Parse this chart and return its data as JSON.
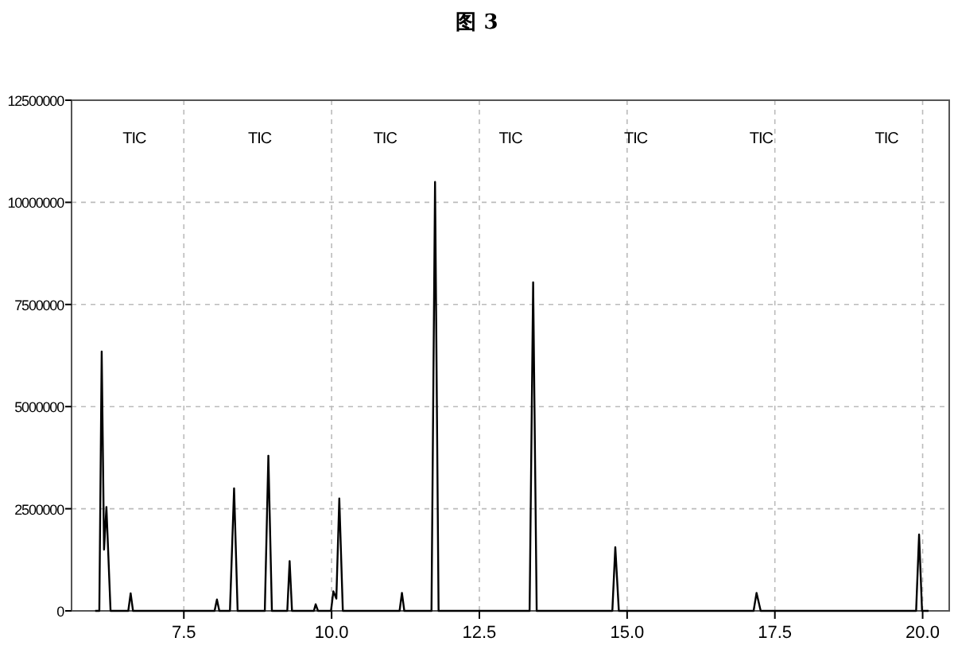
{
  "chart_data": {
    "type": "line",
    "title": "图 3",
    "x": [
      6.0,
      6.07,
      6.11,
      6.15,
      6.19,
      6.26,
      6.56,
      6.6,
      6.64,
      8.02,
      8.06,
      8.1,
      8.28,
      8.35,
      8.41,
      8.87,
      8.93,
      8.99,
      9.25,
      9.29,
      9.33,
      9.7,
      9.73,
      9.77,
      9.99,
      10.03,
      10.08,
      10.13,
      10.19,
      11.15,
      11.19,
      11.23,
      11.69,
      11.75,
      11.81,
      13.35,
      13.41,
      13.47,
      14.75,
      14.8,
      14.86,
      17.14,
      17.19,
      17.26,
      19.89,
      19.94,
      19.99,
      20.1
    ],
    "series": [
      {
        "color": "#000000",
        "values": [
          0,
          0,
          6350000,
          1500000,
          2540000,
          0,
          0,
          430000,
          0,
          0,
          280000,
          0,
          0,
          3000000,
          0,
          0,
          3800000,
          0,
          0,
          1220000,
          0,
          0,
          160000,
          0,
          0,
          480000,
          300000,
          2750000,
          0,
          0,
          440000,
          0,
          0,
          10500000,
          0,
          0,
          8040000,
          0,
          0,
          1560000,
          0,
          0,
          440000,
          0,
          0,
          1870000,
          0,
          0
        ]
      }
    ],
    "xlim": [
      5.6,
      20.45
    ],
    "ylim": [
      0,
      12500000
    ],
    "xticks": [
      7.5,
      {
        "value": 10.0,
        "label": "10.0"
      },
      12.5,
      {
        "value": 15.0,
        "label": "15.0"
      },
      17.5,
      {
        "value": 20.0,
        "label": "20.0"
      }
    ],
    "yticks": [
      0,
      2500000,
      5000000,
      7500000,
      10000000,
      12500000
    ],
    "grid": true,
    "line_style": "solid",
    "marker": "none",
    "annotations": [
      "TIC",
      "TIC",
      "TIC",
      "TIC",
      "TIC",
      "TIC",
      "TIC"
    ]
  }
}
